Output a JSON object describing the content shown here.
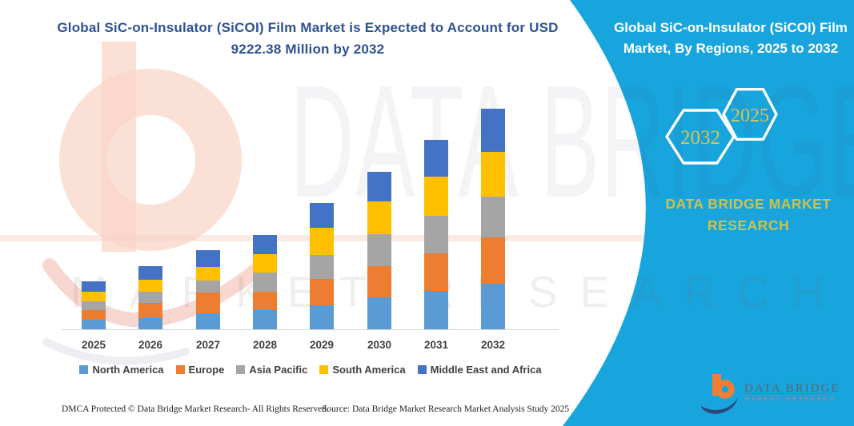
{
  "header": {
    "left_title_lines": [
      "Global SiC-on-Insulator (SiCOI) Film Market is Expected to Account for USD",
      "9222.38 Million by 2032"
    ],
    "right_title_lines": [
      "Global SiC-on-Insulator (SiCOI) Film",
      "Market, By Regions, 2025 to 2032"
    ]
  },
  "badges": {
    "forecast_year": "2032",
    "base_year": "2025"
  },
  "brand": {
    "panel_line1": "DATA BRIDGE MARKET",
    "panel_line2": "RESEARCH",
    "logo_title": "DATA BRIDGE",
    "logo_subtitle": "MARKET RESEARCH"
  },
  "watermark": {
    "line1": "DATA BRIDGE",
    "line2": "MARKET RESEARCH"
  },
  "chart_data": {
    "type": "bar",
    "stacked": true,
    "unit": "USD Million",
    "title": "Global SiC-on-Insulator (SiCOI) Film Market, By Regions, 2025 to 2032",
    "xlabel": "",
    "ylabel": "",
    "grid": false,
    "legend_position": "bottom",
    "total_2032": 9222.38,
    "ylim": [
      0,
      9300
    ],
    "categories": [
      "2025",
      "2026",
      "2027",
      "2028",
      "2029",
      "2030",
      "2031",
      "2032"
    ],
    "series": [
      {
        "name": "North America",
        "color": "#5B9BD5",
        "values": [
          411,
          468,
          655,
          802,
          989,
          1337,
          1604,
          1915
        ]
      },
      {
        "name": "Europe",
        "color": "#ED7D31",
        "values": [
          391,
          635,
          892,
          779,
          1116,
          1303,
          1557,
          1915
        ]
      },
      {
        "name": "Asia Pacific",
        "color": "#A5A5A5",
        "values": [
          368,
          478,
          478,
          802,
          1003,
          1323,
          1594,
          1728
        ]
      },
      {
        "name": "South America",
        "color": "#FFC000",
        "values": [
          388,
          478,
          568,
          759,
          1146,
          1383,
          1614,
          1861
        ]
      },
      {
        "name": "Middle East and Africa",
        "color": "#4472C4",
        "values": [
          434,
          581,
          725,
          812,
          1012,
          1247,
          1561,
          1803.38
        ]
      }
    ]
  },
  "footer": {
    "left": "DMCA Protected © Data Bridge Market Research-  All Rights Reserved.",
    "right": "Source: Data Bridge Market Research  Market Analysis Study 2025"
  },
  "colors": {
    "panel_blue": "#18a5de",
    "title_navy": "#2e5294",
    "badge_yellow": "#d6c553",
    "axis_label_gray": "#3f3f3f",
    "logo_orange": "#ef7f35",
    "logo_navy": "#2d4878"
  }
}
